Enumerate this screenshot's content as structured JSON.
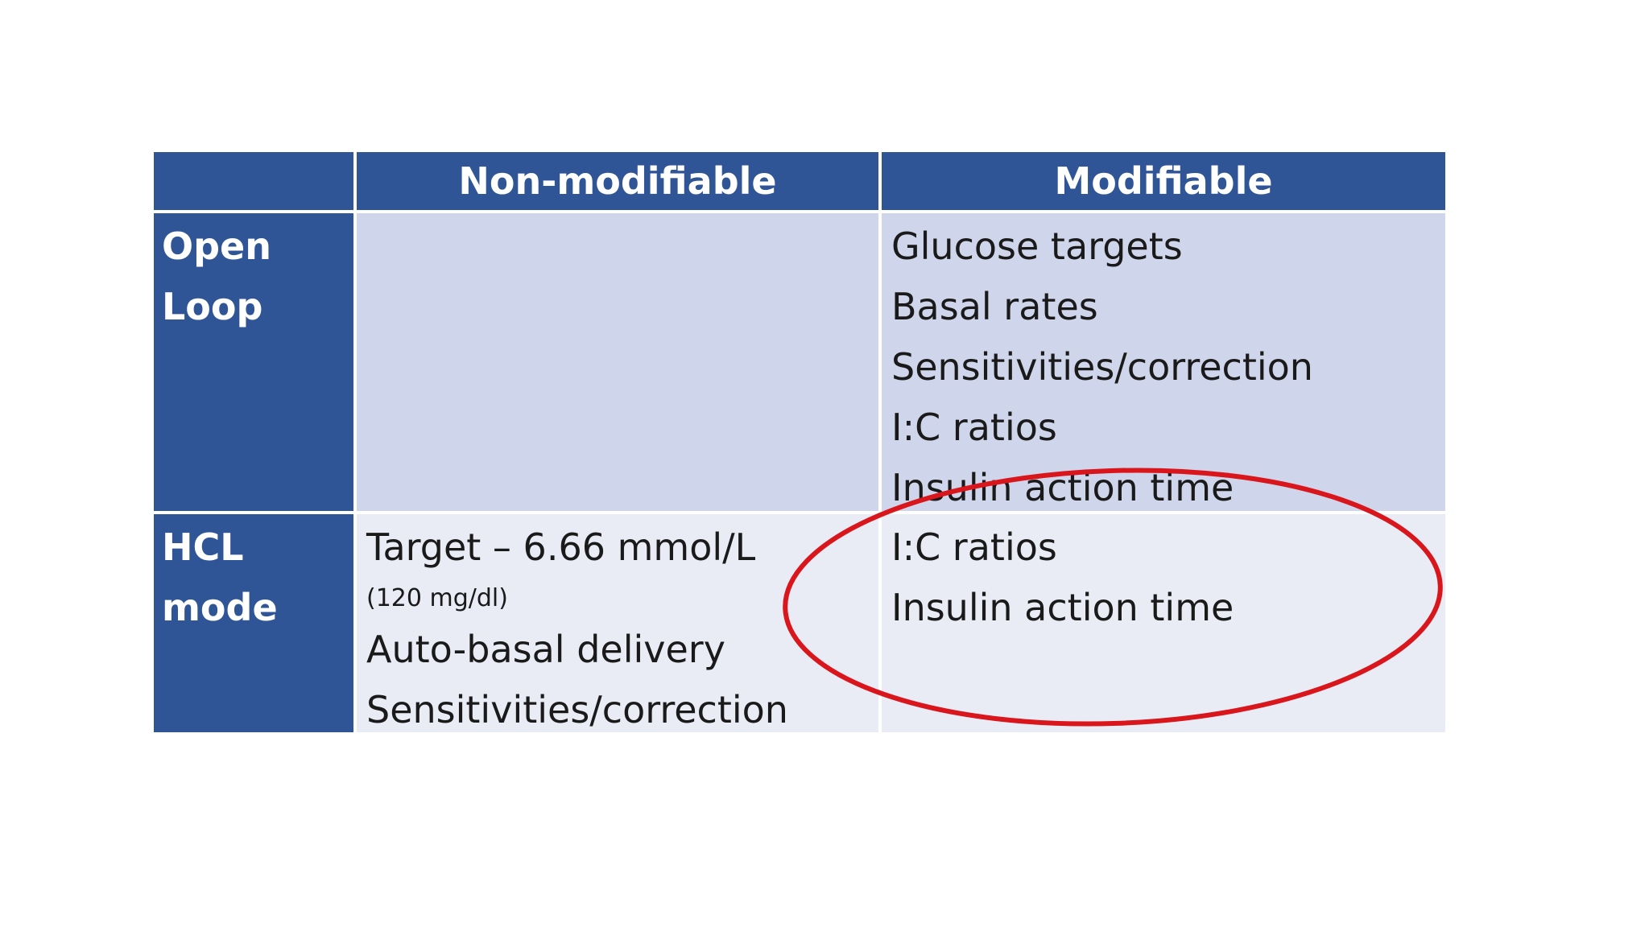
{
  "table": {
    "headers": {
      "corner": "",
      "col1": "Non-modifiable",
      "col2": "Modifiable"
    },
    "rows": [
      {
        "label_lines": [
          "Open",
          "Loop"
        ],
        "non_modifiable": [],
        "modifiable": [
          "Glucose targets",
          "Basal rates",
          "Sensitivities/correction",
          "I:C ratios",
          "Insulin action time"
        ]
      },
      {
        "label_lines": [
          "HCL",
          "mode"
        ],
        "non_modifiable": {
          "target": "Target – 6.66 mmol/L",
          "target_note": "(120  mg/dl)",
          "items": [
            "Auto-basal delivery",
            "Sensitivities/correction"
          ]
        },
        "modifiable": [
          "I:C ratios",
          "Insulin action time"
        ]
      }
    ]
  },
  "colors": {
    "header_bg": "#2f5597",
    "row1_bg": "#cfd5ea",
    "row2_bg": "#e9ebf5",
    "highlight_oval": "#d9161c"
  }
}
